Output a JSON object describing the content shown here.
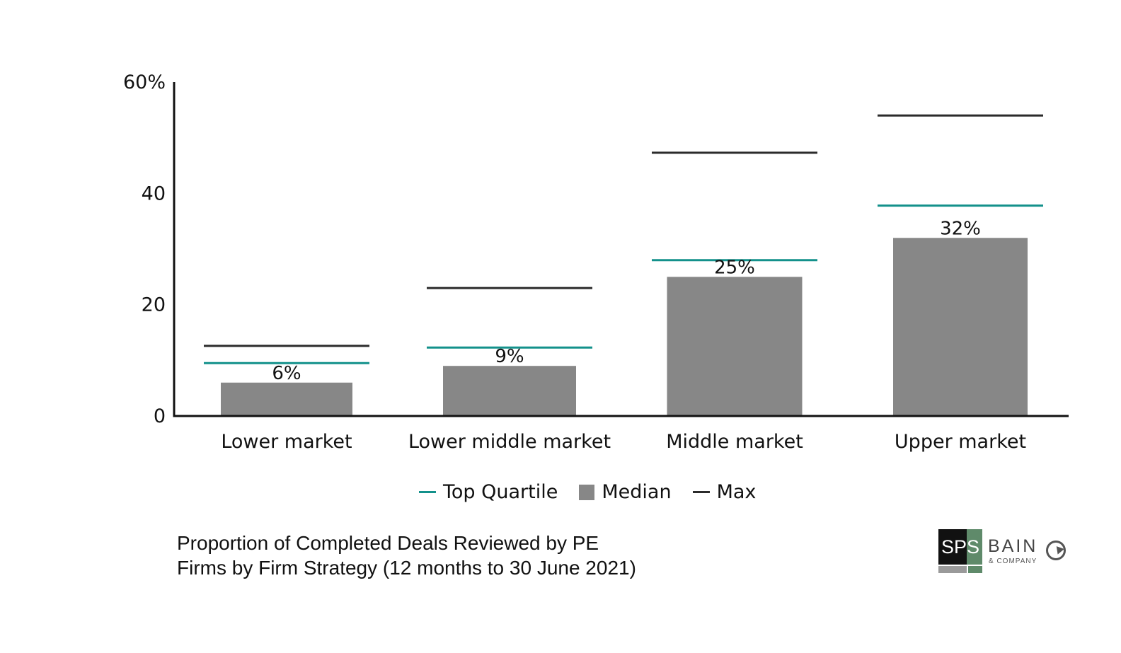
{
  "chart_data": {
    "type": "bar",
    "categories": [
      "Lower market",
      "Lower middle market",
      "Middle market",
      "Upper market"
    ],
    "series": [
      {
        "name": "Median",
        "values": [
          6,
          9,
          25,
          32
        ],
        "color": "#878787"
      },
      {
        "name": "Top Quartile",
        "values": [
          9.5,
          12.3,
          28,
          37.8
        ],
        "color": "#13918b"
      },
      {
        "name": "Max",
        "values": [
          12.6,
          23,
          47.3,
          54
        ]
      }
    ],
    "data_labels": [
      "6%",
      "9%",
      "25%",
      "32%"
    ],
    "y_ticks": [
      "0",
      "20",
      "40",
      "60%"
    ],
    "y_tick_values": [
      0,
      20,
      40,
      60
    ],
    "ylim": [
      0,
      60
    ],
    "legend_position": "bottom",
    "colors": {
      "median": "#878787",
      "top_quartile": "#13918b",
      "max": "#2b2b2b",
      "axis": "#111111"
    }
  },
  "legend": {
    "items": [
      "Top Quartile",
      "Median",
      "Max"
    ]
  },
  "caption": {
    "line1": "Proportion of Completed Deals Reviewed by PE",
    "line2": "Firms by Firm Strategy (12 months to 30 June 2021)"
  },
  "logo": {
    "sps_left": "SP",
    "sps_right": "S",
    "bain": "BAIN",
    "company": "& COMPANY"
  }
}
